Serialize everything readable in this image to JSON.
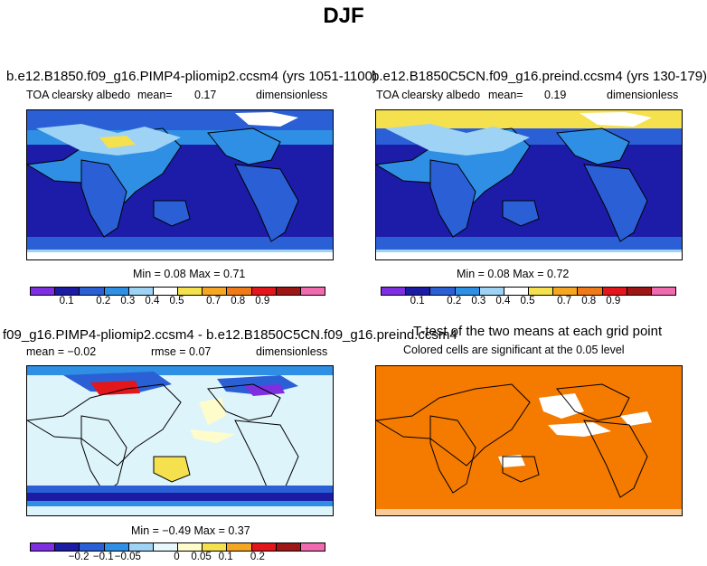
{
  "title": "DJF",
  "panels": {
    "p1": {
      "title": "b.e12.B1850.f09_g16.PIMP4-pliomip2.ccsm4 (yrs 1051-1100)",
      "left": "TOA clearsky albedo",
      "mean_label": "mean=",
      "mean_value": "0.17",
      "units": "dimensionless",
      "minmax": "Min =   0.08 Max =   0.71"
    },
    "p2": {
      "title": "b.e12.B1850C5CN.f09_g16.preind.ccsm4 (yrs 130-179)",
      "left": "TOA clearsky albedo",
      "mean_label": "mean=",
      "mean_value": "0.19",
      "units": "dimensionless",
      "minmax": "Min =   0.08 Max =   0.72"
    },
    "p3": {
      "title": "f09_g16.PIMP4-pliomip2.ccsm4 - b.e12.B1850C5CN.f09_g16.preind.ccsm4",
      "mean_text": "mean =  −0.02",
      "rmse_text": "rmse =   0.07",
      "units": "dimensionless",
      "minmax": "Min =  −0.49 Max =   0.37"
    },
    "p4": {
      "title": "T-test of the two means at each grid point",
      "subtitle": "Colored cells are significant at the 0.05 level"
    }
  },
  "colorbar_abs": {
    "colors": [
      "#7e30e0",
      "#1b1ba4",
      "#2a5fd6",
      "#2e8fe4",
      "#9ed3f5",
      "#ffffff",
      "#f5e04e",
      "#f5a623",
      "#f07a18",
      "#e3161c",
      "#9e1717",
      "#f06ab0"
    ],
    "ticks": [
      "0.1",
      "0.2",
      "0.3",
      "0.4",
      "0.5",
      "0.7",
      "0.8",
      "0.9"
    ]
  },
  "colorbar_diff": {
    "colors": [
      "#7e30e0",
      "#1b1ba4",
      "#2a5fd6",
      "#2e8fe4",
      "#9ed3f5",
      "#e8f7fb",
      "#fffccb",
      "#f5e04e",
      "#f5a623",
      "#e3161c",
      "#9e1717",
      "#f06ab0"
    ],
    "ticks": [
      "−0.2",
      "−0.1",
      "−0.05",
      "0",
      "0.05",
      "0.1",
      "0.2"
    ]
  },
  "colors": {
    "deep_ocean": "#1c1ca8",
    "mid_blue": "#2a5fd6",
    "diff_background": "#def4fb",
    "ttest_fill": "#f47a00",
    "coast": "#000000"
  }
}
